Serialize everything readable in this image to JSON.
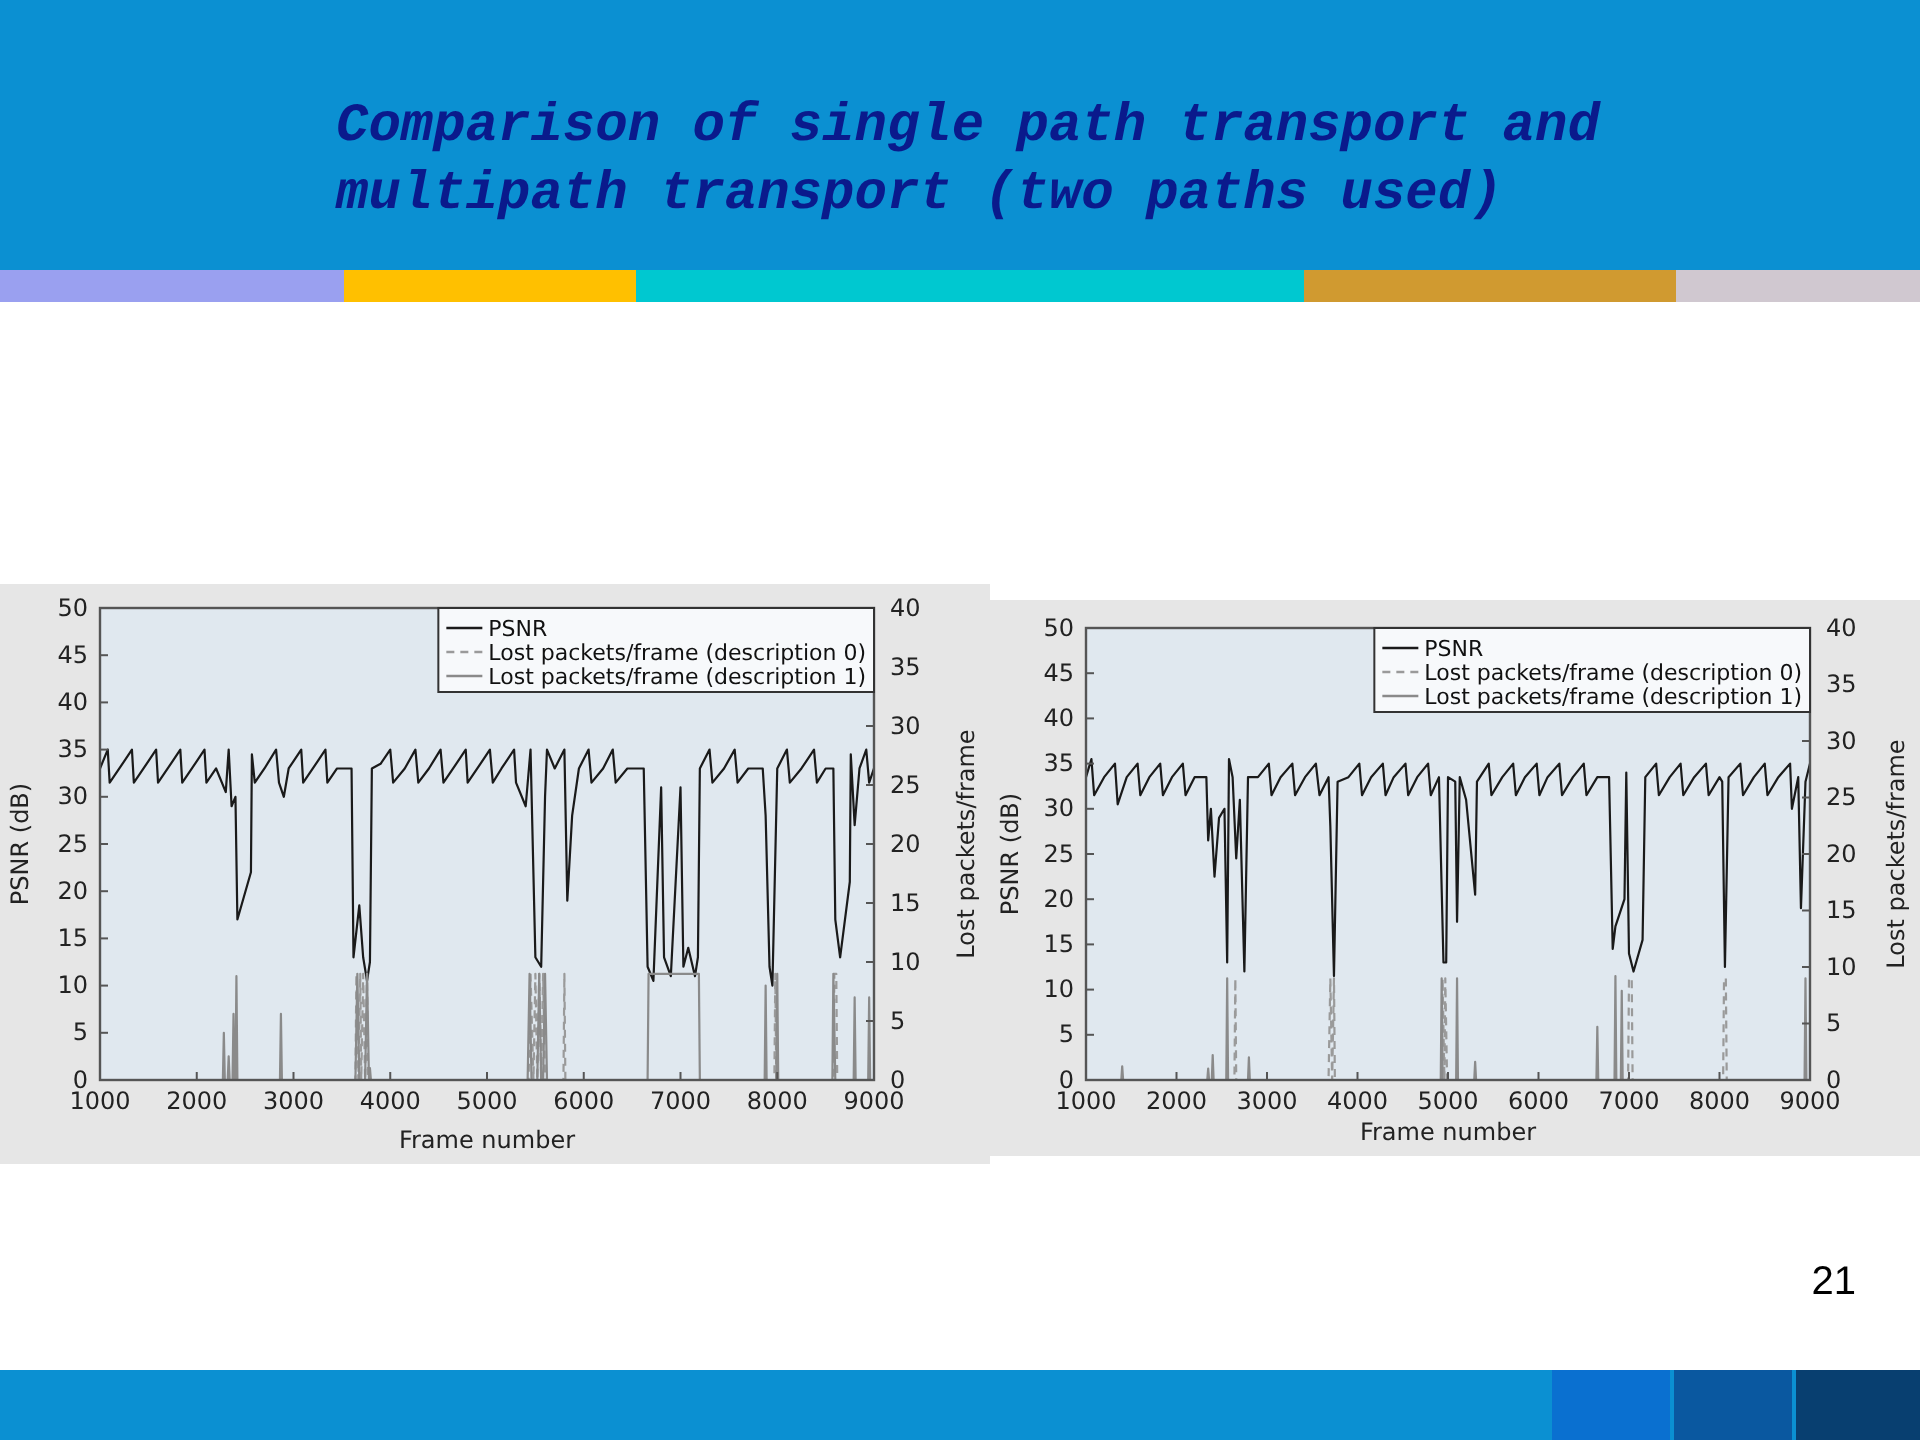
{
  "chart_data": [
    {
      "type": "line",
      "title": "Comparison of single path transport and multipath transport (two paths used)",
      "xlabel": "Frame number",
      "ylabel": "PSNR (dB)",
      "y2label": "Lost packets/frame",
      "xlim": [
        1000,
        9000
      ],
      "xticks": [
        1000,
        2000,
        3000,
        4000,
        5000,
        6000,
        7000,
        8000,
        9000
      ],
      "ylim": [
        0,
        50
      ],
      "yticks": [
        0,
        5,
        10,
        15,
        20,
        25,
        30,
        35,
        40,
        45,
        50
      ],
      "y2lim": [
        0,
        40
      ],
      "y2ticks": [
        0,
        5,
        10,
        15,
        20,
        25,
        30,
        35,
        40
      ],
      "legend": "top right",
      "grid": false,
      "series": [
        {
          "name": "PSNR",
          "color": "#1a1a1a",
          "line_style": "solid",
          "x": [
            1000,
            1080,
            1100,
            1200,
            1330,
            1350,
            1450,
            1580,
            1600,
            1700,
            1830,
            1850,
            1950,
            2080,
            2100,
            2200,
            2300,
            2330,
            2360,
            2400,
            2420,
            2560,
            2570,
            2600,
            2700,
            2820,
            2850,
            2900,
            2950,
            3080,
            3100,
            3200,
            3330,
            3350,
            3450,
            3600,
            3620,
            3680,
            3720,
            3760,
            3790,
            3810,
            3900,
            4000,
            4030,
            4150,
            4260,
            4290,
            4400,
            4520,
            4550,
            4650,
            4780,
            4800,
            4900,
            5030,
            5060,
            5150,
            5280,
            5300,
            5400,
            5450,
            5500,
            5560,
            5600,
            5620,
            5700,
            5800,
            5830,
            5880,
            5950,
            6050,
            6080,
            6200,
            6300,
            6330,
            6450,
            6620,
            6660,
            6720,
            6800,
            6830,
            6900,
            7000,
            7030,
            7080,
            7150,
            7180,
            7200,
            7300,
            7330,
            7450,
            7560,
            7590,
            7700,
            7850,
            7880,
            7920,
            7950,
            8000,
            8100,
            8130,
            8250,
            8380,
            8410,
            8500,
            8580,
            8600,
            8650,
            8750,
            8760,
            8800,
            8850,
            8920,
            8950,
            9000
          ],
          "values": [
            33,
            35,
            31.5,
            33,
            35,
            31.5,
            33,
            35,
            31.5,
            33,
            35,
            31.5,
            33,
            35,
            31.5,
            33,
            30.5,
            35,
            29,
            30,
            17,
            22,
            34.5,
            31.5,
            33,
            35,
            31.5,
            30,
            33,
            35,
            31.5,
            33,
            35,
            31.5,
            33,
            33,
            13,
            18.5,
            13,
            10.5,
            12.5,
            33,
            33.5,
            35,
            31.5,
            33,
            35,
            31.5,
            33,
            35,
            31.5,
            33,
            35,
            31.5,
            33,
            35,
            31.5,
            33,
            35,
            31.5,
            29,
            35,
            13,
            12,
            30,
            35,
            33,
            35,
            19,
            28,
            33,
            35,
            31.5,
            33,
            35,
            31.5,
            33,
            33,
            12,
            10.5,
            31,
            13,
            11,
            31,
            12,
            14,
            11,
            13,
            33,
            35,
            31.5,
            33,
            35,
            31.5,
            33,
            33,
            28,
            12,
            10,
            33,
            35,
            31.5,
            33,
            35,
            31.5,
            33,
            33,
            17,
            13,
            21,
            34.5,
            27,
            33,
            35,
            31.5,
            33
          ]
        },
        {
          "name": "Lost packets/frame (description 0)",
          "color": "#9a9a9a",
          "line_style": "dashed",
          "axis": "y2",
          "x": [
            1000,
            3640,
            3650,
            3670,
            3690,
            3700,
            3720,
            3740,
            3760,
            3770,
            5430,
            5450,
            5480,
            5500,
            5520,
            5540,
            5560,
            5580,
            5600,
            5790,
            5800,
            5810,
            7970,
            7980,
            7990,
            8580,
            8590,
            8610,
            8620,
            9000
          ],
          "values": [
            0,
            0,
            9,
            0,
            9,
            0,
            9,
            0,
            9,
            0,
            0,
            9,
            0,
            9,
            0,
            9,
            0,
            9,
            0,
            0,
            9,
            0,
            0,
            9,
            0,
            0,
            9,
            9,
            0,
            0
          ]
        },
        {
          "name": "Lost packets/frame (description 1)",
          "color": "#8a8a8a",
          "line_style": "solid",
          "axis": "y2",
          "x": [
            1000,
            2270,
            2280,
            2290,
            2320,
            2330,
            2340,
            2370,
            2380,
            2390,
            2400,
            2410,
            2420,
            2860,
            2870,
            2880,
            3640,
            3660,
            3680,
            3740,
            3760,
            3780,
            3790,
            3800,
            5420,
            5440,
            5460,
            5520,
            5540,
            5560,
            5580,
            5600,
            5620,
            6660,
            6670,
            7190,
            7200,
            7870,
            7880,
            7890,
            7990,
            8000,
            8010,
            8570,
            8580,
            8600,
            8790,
            8800,
            8810,
            8940,
            8950,
            8960,
            9000
          ],
          "values": [
            0,
            0,
            4,
            0,
            0,
            2,
            0,
            0,
            5.6,
            0,
            0,
            8.8,
            0,
            0,
            5.6,
            0,
            0,
            9,
            0,
            0,
            9,
            0,
            1,
            0,
            0,
            9,
            0,
            0,
            9,
            0,
            0,
            9,
            0,
            0,
            9,
            9,
            0,
            0,
            8,
            0,
            0,
            9,
            0,
            0,
            9,
            0,
            0,
            7,
            0,
            0,
            7,
            0,
            0
          ]
        }
      ]
    },
    {
      "type": "line",
      "xlabel": "Frame number",
      "ylabel": "PSNR (dB)",
      "y2label": "Lost packets/frame",
      "annotations": [
        "21"
      ],
      "xlim": [
        1000,
        9000
      ],
      "xticks": [
        1000,
        2000,
        3000,
        4000,
        5000,
        6000,
        7000,
        8000,
        9000
      ],
      "ylim": [
        0,
        50
      ],
      "yticks": [
        0,
        5,
        10,
        15,
        20,
        25,
        30,
        35,
        40,
        45,
        50
      ],
      "y2lim": [
        0,
        40
      ],
      "y2ticks": [
        0,
        5,
        10,
        15,
        20,
        25,
        30,
        35,
        40
      ],
      "legend": "top right",
      "grid": false,
      "series": [
        {
          "name": "PSNR",
          "color": "#1a1a1a",
          "line_style": "solid",
          "x": [
            1000,
            1060,
            1090,
            1200,
            1320,
            1350,
            1450,
            1570,
            1600,
            1700,
            1820,
            1850,
            1950,
            2070,
            2100,
            2200,
            2330,
            2350,
            2380,
            2420,
            2470,
            2530,
            2560,
            2580,
            2620,
            2660,
            2700,
            2750,
            2790,
            2900,
            3020,
            3050,
            3150,
            3280,
            3310,
            3420,
            3540,
            3580,
            3680,
            3700,
            3740,
            3780,
            3900,
            4020,
            4050,
            4150,
            4280,
            4310,
            4400,
            4530,
            4560,
            4660,
            4780,
            4810,
            4900,
            4950,
            4980,
            5000,
            5080,
            5100,
            5130,
            5200,
            5300,
            5320,
            5450,
            5480,
            5600,
            5720,
            5750,
            5850,
            5980,
            6010,
            6100,
            6230,
            6260,
            6380,
            6500,
            6530,
            6650,
            6780,
            6820,
            6850,
            6950,
            6970,
            7000,
            7050,
            7150,
            7180,
            7300,
            7330,
            7450,
            7570,
            7600,
            7720,
            7850,
            7880,
            8000,
            8030,
            8060,
            8100,
            8230,
            8260,
            8380,
            8500,
            8530,
            8650,
            8780,
            8800,
            8870,
            8900,
            8950,
            9000
          ],
          "values": [
            33.5,
            35.5,
            31.5,
            33.5,
            35,
            30.5,
            33.5,
            35,
            31.5,
            33.5,
            35,
            31.5,
            33.5,
            35,
            31.5,
            33.5,
            33.5,
            26.5,
            30,
            22.5,
            29,
            30,
            13,
            35.5,
            33.5,
            24.5,
            31,
            12,
            33.5,
            33.5,
            35,
            31.5,
            33.5,
            35,
            31.5,
            33.5,
            35,
            31.5,
            33.5,
            28,
            11.5,
            33,
            33.5,
            35,
            31.5,
            33.5,
            35,
            31.5,
            33.5,
            35,
            31.5,
            33.5,
            35,
            31.5,
            33.5,
            13,
            13,
            33.5,
            33,
            17.5,
            33.5,
            31,
            20.5,
            33,
            35,
            31.5,
            33.5,
            35,
            31.5,
            33.5,
            35,
            31.5,
            33.5,
            35,
            31.5,
            33.5,
            35,
            31.5,
            33.5,
            33.5,
            14.5,
            17,
            20,
            34,
            14,
            12,
            15.5,
            33.5,
            35,
            31.5,
            33.5,
            35,
            31.5,
            33.5,
            35,
            31.5,
            33.5,
            33,
            12.5,
            33.5,
            35,
            31.5,
            33.5,
            35,
            31.5,
            33.5,
            35,
            30,
            33.5,
            19,
            33,
            35
          ]
        },
        {
          "name": "Lost packets/frame (description 0)",
          "color": "#9a9a9a",
          "line_style": "dashed",
          "axis": "y2",
          "x": [
            1000,
            2640,
            2650,
            2660,
            3680,
            3700,
            3720,
            3740,
            3750,
            4930,
            4940,
            4960,
            4970,
            4990,
            6990,
            7000,
            7030,
            7040,
            8040,
            8050,
            8070,
            8080,
            9000
          ],
          "values": [
            0,
            0,
            9,
            0,
            0,
            9,
            0,
            9,
            0,
            0,
            9,
            0,
            9,
            0,
            0,
            9,
            9,
            0,
            0,
            9,
            9,
            0,
            0
          ]
        },
        {
          "name": "Lost packets/frame (description 1)",
          "color": "#8a8a8a",
          "line_style": "solid",
          "axis": "y2",
          "x": [
            1000,
            1390,
            1400,
            1410,
            2340,
            2350,
            2360,
            2390,
            2400,
            2410,
            2550,
            2560,
            2570,
            2790,
            2800,
            2810,
            4920,
            4930,
            4940,
            5090,
            5100,
            5110,
            5290,
            5300,
            5310,
            6640,
            6650,
            6660,
            6840,
            6850,
            6860,
            6910,
            6920,
            6930,
            8940,
            8950,
            8960,
            9000
          ],
          "values": [
            0,
            0,
            1.2,
            0,
            0,
            1,
            0,
            0,
            2.2,
            0,
            0,
            9,
            0,
            0,
            2,
            0,
            0,
            9,
            0,
            0,
            9,
            0,
            0,
            1.6,
            0,
            0,
            4.7,
            0,
            0,
            9.2,
            0,
            0,
            7.9,
            0,
            0,
            9,
            0,
            0
          ]
        }
      ]
    }
  ]
}
